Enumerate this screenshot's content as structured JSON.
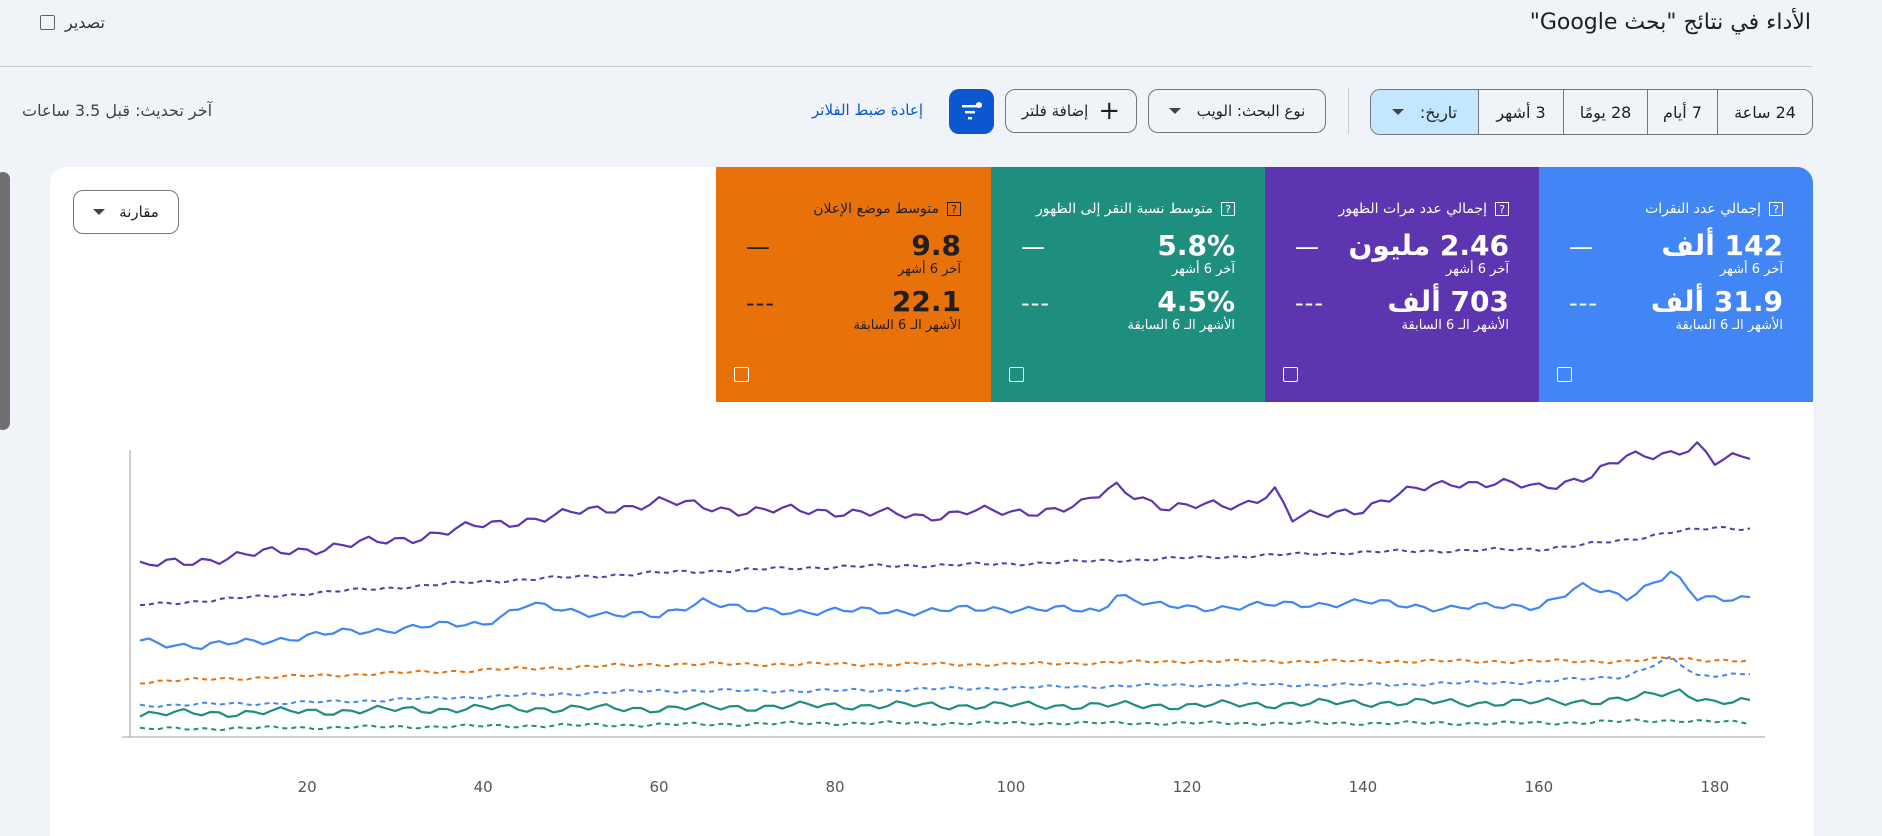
{
  "header": {
    "title": "الأداء في نتائج \"بحث Google\"",
    "export_label": "تصدير"
  },
  "toolbar": {
    "date_ranges": [
      "24 ساعة",
      "7 أيام",
      "28 يومًا",
      "3 أشهر"
    ],
    "date_selector_label": "تاريخ:",
    "search_type_label": "نوع البحث: الويب",
    "add_filter_label": "إضافة فلتر",
    "reset_filters_label": "إعادة ضبط الفلاتر",
    "last_update": "آخر تحديث: قبل 3.5 ساعات"
  },
  "compare_label": "مقارنة",
  "metrics": [
    {
      "title": "إجمالي عدد النقرات",
      "value": "142 ألف",
      "period": "آخر 6 أشهر",
      "prev_value": "31.9 ألف",
      "prev_period": "الأشهر الـ 6 السابقة",
      "color": "#4285f4"
    },
    {
      "title": "إجمالي عدد مرات الظهور",
      "value": "2.46 مليون",
      "period": "آخر 6 أشهر",
      "prev_value": "703 ألف",
      "prev_period": "الأشهر الـ 6 السابقة",
      "color": "#5e35b1"
    },
    {
      "title": "متوسط نسبة النقر إلى الظهور",
      "value": "5.8%",
      "period": "آخر 6 أشهر",
      "prev_value": "4.5%",
      "prev_period": "الأشهر الـ 6 السابقة",
      "color": "#1e8e7e"
    },
    {
      "title": "متوسط موضع الإعلان",
      "value": "9.8",
      "period": "آخر 6 أشهر",
      "prev_value": "22.1",
      "prev_period": "الأشهر الـ 6 السابقة",
      "color": "#e8710a"
    }
  ],
  "metric_current_marker": "—",
  "metric_previous_marker": "---",
  "chart_data": {
    "type": "line",
    "x_ticks": [
      20,
      40,
      60,
      80,
      100,
      120,
      140,
      160,
      180
    ],
    "xlim": [
      1,
      184
    ],
    "ylim": [
      0,
      100
    ],
    "grid": false,
    "series": [
      {
        "color": "#5e35b1",
        "style": "solid",
        "anchors": [
          [
            1,
            57
          ],
          [
            10,
            60
          ],
          [
            20,
            63
          ],
          [
            30,
            66
          ],
          [
            40,
            71
          ],
          [
            50,
            75
          ],
          [
            55,
            77
          ],
          [
            60,
            79
          ],
          [
            70,
            76
          ],
          [
            80,
            76
          ],
          [
            90,
            74
          ],
          [
            95,
            76
          ],
          [
            100,
            75
          ],
          [
            108,
            78
          ],
          [
            112,
            84
          ],
          [
            118,
            77
          ],
          [
            126,
            78
          ],
          [
            130,
            83
          ],
          [
            132,
            73
          ],
          [
            140,
            77
          ],
          [
            146,
            83
          ],
          [
            150,
            86
          ],
          [
            160,
            84
          ],
          [
            166,
            88
          ],
          [
            170,
            94
          ],
          [
            175,
            96
          ],
          [
            178,
            98
          ],
          [
            180,
            92
          ],
          [
            184,
            95
          ]
        ]
      },
      {
        "color": "#5e35b1",
        "style": "dashed",
        "anchors": [
          [
            1,
            44
          ],
          [
            20,
            48
          ],
          [
            40,
            52
          ],
          [
            60,
            55
          ],
          [
            80,
            57
          ],
          [
            100,
            58
          ],
          [
            120,
            60
          ],
          [
            140,
            62
          ],
          [
            160,
            63
          ],
          [
            170,
            66
          ],
          [
            175,
            69
          ],
          [
            180,
            70
          ],
          [
            184,
            70
          ]
        ]
      },
      {
        "color": "#4285f4",
        "style": "solid",
        "anchors": [
          [
            1,
            32
          ],
          [
            8,
            30
          ],
          [
            15,
            32
          ],
          [
            25,
            35
          ],
          [
            40,
            38
          ],
          [
            45,
            44
          ],
          [
            50,
            42
          ],
          [
            60,
            40
          ],
          [
            65,
            46
          ],
          [
            70,
            42
          ],
          [
            80,
            42
          ],
          [
            90,
            42
          ],
          [
            100,
            43
          ],
          [
            110,
            42
          ],
          [
            112,
            48
          ],
          [
            116,
            44
          ],
          [
            120,
            43
          ],
          [
            130,
            44
          ],
          [
            140,
            45
          ],
          [
            150,
            43
          ],
          [
            160,
            44
          ],
          [
            165,
            50
          ],
          [
            170,
            47
          ],
          [
            175,
            55
          ],
          [
            178,
            46
          ],
          [
            184,
            47
          ]
        ]
      },
      {
        "color": "#4285f4",
        "style": "dashed",
        "anchors": [
          [
            1,
            10
          ],
          [
            20,
            11
          ],
          [
            40,
            13
          ],
          [
            60,
            15
          ],
          [
            80,
            15
          ],
          [
            100,
            16
          ],
          [
            120,
            17
          ],
          [
            140,
            17
          ],
          [
            160,
            18
          ],
          [
            170,
            20
          ],
          [
            175,
            26
          ],
          [
            178,
            20
          ],
          [
            184,
            21
          ]
        ]
      },
      {
        "color": "#e8710a",
        "style": "dashed",
        "anchors": [
          [
            1,
            18
          ],
          [
            10,
            19
          ],
          [
            20,
            20
          ],
          [
            40,
            22
          ],
          [
            60,
            24
          ],
          [
            80,
            24
          ],
          [
            100,
            24
          ],
          [
            120,
            25
          ],
          [
            140,
            25
          ],
          [
            160,
            25
          ],
          [
            170,
            25
          ],
          [
            175,
            26
          ],
          [
            184,
            25
          ]
        ]
      },
      {
        "color": "#1e8e7e",
        "style": "solid",
        "anchors": [
          [
            1,
            7
          ],
          [
            20,
            8
          ],
          [
            40,
            9
          ],
          [
            60,
            9
          ],
          [
            80,
            10
          ],
          [
            100,
            10
          ],
          [
            120,
            10
          ],
          [
            140,
            11
          ],
          [
            160,
            11
          ],
          [
            170,
            12
          ],
          [
            176,
            15
          ],
          [
            180,
            11
          ],
          [
            184,
            11
          ]
        ]
      },
      {
        "color": "#1e8e7e",
        "style": "dashed",
        "anchors": [
          [
            1,
            2
          ],
          [
            40,
            3
          ],
          [
            80,
            4
          ],
          [
            120,
            4
          ],
          [
            160,
            4
          ],
          [
            176,
            5
          ],
          [
            184,
            4
          ]
        ]
      }
    ]
  }
}
